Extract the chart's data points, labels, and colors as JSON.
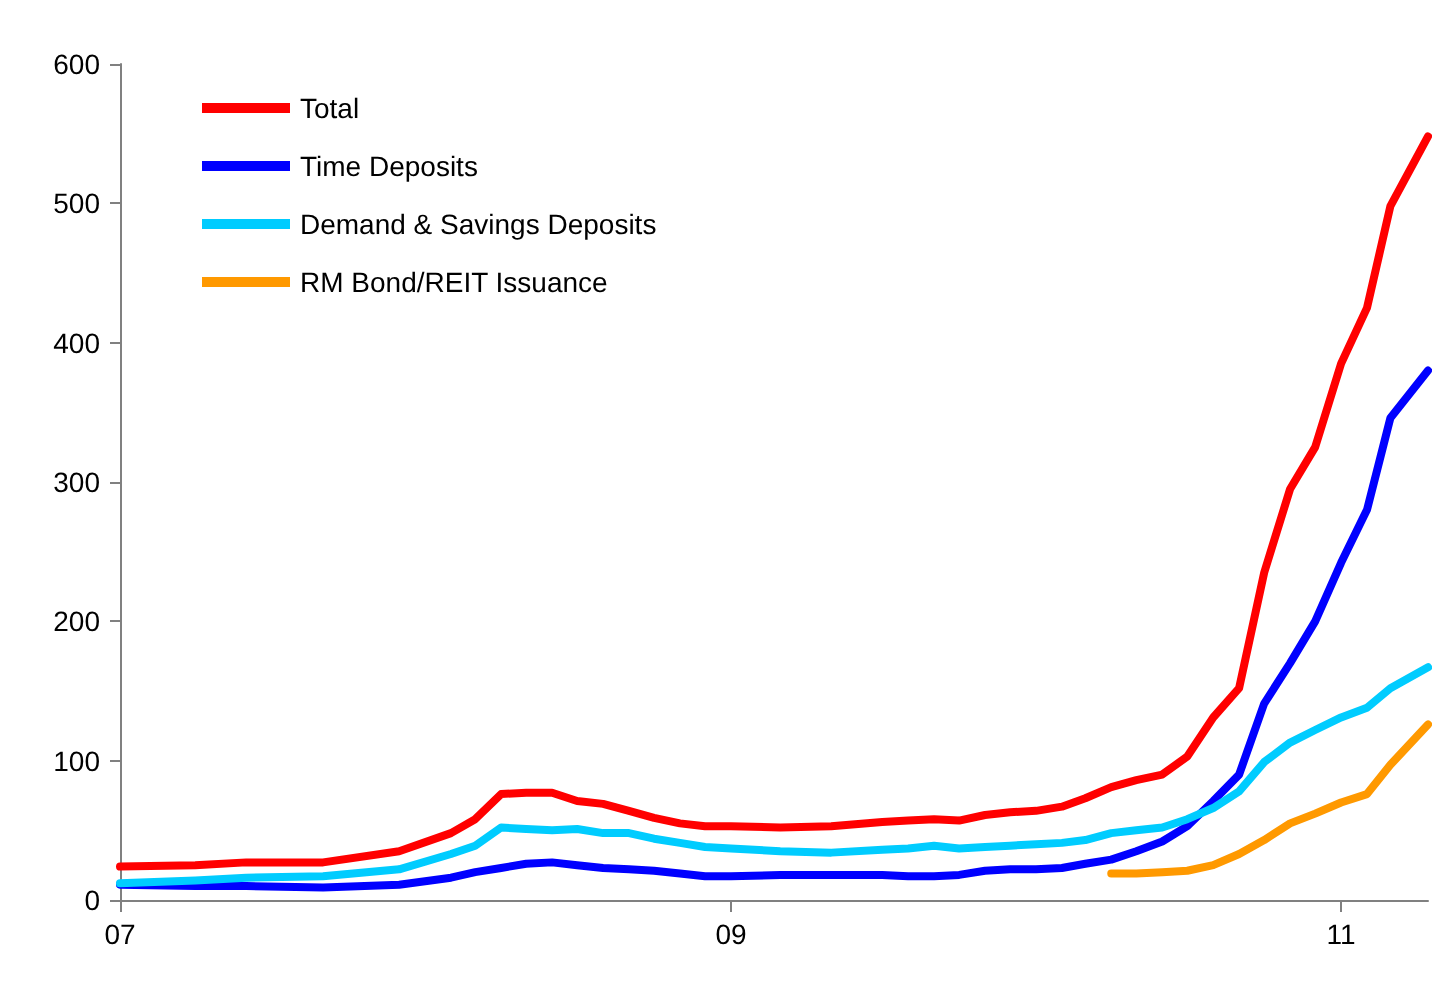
{
  "chart_data": {
    "type": "line",
    "x": [
      "2007-01",
      "2007-04",
      "2007-06",
      "2007-09",
      "2007-12",
      "2008-02",
      "2008-03",
      "2008-04",
      "2008-05",
      "2008-06",
      "2008-07",
      "2008-08",
      "2008-09",
      "2008-10",
      "2008-11",
      "2008-12",
      "2009-01",
      "2009-03",
      "2009-05",
      "2009-07",
      "2009-08",
      "2009-09",
      "2009-10",
      "2009-11",
      "2009-12",
      "2010-01",
      "2010-02",
      "2010-03",
      "2010-04",
      "2010-05",
      "2010-06",
      "2010-07",
      "2010-08",
      "2010-09",
      "2010-10",
      "2010-11",
      "2010-12",
      "2011-01",
      "2011-02",
      "2011-03",
      "2011-04-15"
    ],
    "series": [
      {
        "name": "Total",
        "color": "#ff0000",
        "values": [
          24,
          25,
          27,
          27,
          35,
          48,
          58,
          76,
          77,
          77,
          71,
          69,
          64,
          59,
          55,
          53,
          53,
          52,
          53,
          56,
          57,
          58,
          57,
          61,
          63,
          64,
          67,
          73,
          81,
          86,
          90,
          103,
          131,
          152,
          235,
          295,
          325,
          385,
          425,
          498,
          548
        ]
      },
      {
        "name": "Time Deposits",
        "color": "#0000ff",
        "values": [
          11,
          10,
          10,
          9,
          11,
          16,
          20,
          23,
          26,
          27,
          25,
          23,
          22,
          21,
          19,
          17,
          17,
          18,
          18,
          18,
          17,
          17,
          18,
          21,
          22,
          22,
          23,
          26,
          29,
          35,
          42,
          53,
          71,
          90,
          141,
          170,
          200,
          242,
          280,
          346,
          380
        ]
      },
      {
        "name": "Demand & Savings Deposits",
        "color": "#00ccff",
        "values": [
          12,
          14,
          16,
          17,
          22,
          33,
          39,
          52,
          51,
          50,
          51,
          48,
          48,
          44,
          41,
          38,
          37,
          35,
          34,
          36,
          37,
          39,
          37,
          38,
          39,
          40,
          41,
          43,
          48,
          50,
          52,
          58,
          66,
          78,
          99,
          113,
          122,
          131,
          138,
          152,
          167
        ]
      },
      {
        "name": "RM Bond/REIT Issuance",
        "color": "#ff9900",
        "values": [
          null,
          null,
          null,
          null,
          null,
          null,
          null,
          null,
          null,
          null,
          null,
          null,
          null,
          null,
          null,
          null,
          null,
          null,
          null,
          null,
          null,
          null,
          null,
          null,
          null,
          null,
          null,
          null,
          19,
          19,
          20,
          21,
          25,
          33,
          43,
          55,
          62,
          70,
          76,
          97,
          126
        ]
      }
    ],
    "xlim": [
      "2007-01",
      "2011-04-15"
    ],
    "xticks": [
      {
        "value": "2007-01",
        "label": "07"
      },
      {
        "value": "2009-01",
        "label": "09"
      },
      {
        "value": "2011-01",
        "label": "11"
      }
    ],
    "ylim": [
      0,
      600
    ],
    "yticks": [
      0,
      100,
      200,
      300,
      400,
      500,
      600
    ],
    "grid": false,
    "legend": "top left",
    "marker": "none",
    "line_style": "solid"
  }
}
